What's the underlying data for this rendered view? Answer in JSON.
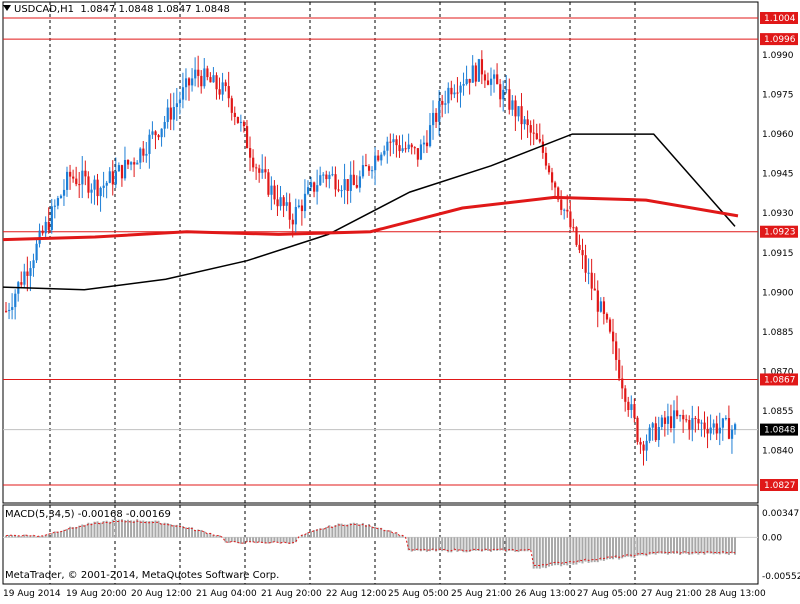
{
  "header": {
    "symbol": "USDCAD,H1",
    "ohlc": "1.0847 1.0848 1.0847 1.0848"
  },
  "macd_label": "MACD(5,34,5) -0.00168 -0.00169",
  "copyright": "MetaTrader, © 2001-2014, MetaQuotes Software Corp.",
  "colors": {
    "bull_candle": "#1e7fd6",
    "bear_candle": "#e01818",
    "ma_slow": "#e01818",
    "ma_fast": "#000000",
    "level_line": "#e01818",
    "grid": "#000000",
    "macd_hist": "#a8a8a8",
    "macd_signal": "#e01818"
  },
  "price_axis": {
    "labels": [
      "1.0990",
      "1.0975",
      "1.0960",
      "1.0945",
      "1.0930",
      "1.0915",
      "1.0900",
      "1.0885",
      "1.0870",
      "1.0855",
      "1.0840"
    ],
    "current_price": "1.0848"
  },
  "level_lines": [
    "1.1004",
    "1.0996",
    "1.0923",
    "1.0867",
    "1.0827"
  ],
  "macd_axis": [
    "0.00347",
    "0.00",
    "-0.00552"
  ],
  "time_axis": [
    "19 Aug 2014",
    "19 Aug 20:00",
    "20 Aug 12:00",
    "21 Aug 04:00",
    "21 Aug 20:00",
    "22 Aug 12:00",
    "25 Aug 05:00",
    "25 Aug 21:00",
    "26 Aug 13:00",
    "27 Aug 05:00",
    "27 Aug 21:00",
    "28 Aug 13:00"
  ],
  "chart_data": {
    "type": "candlestick",
    "symbol": "USDCAD",
    "timeframe": "H1",
    "ylim": [
      1.0827,
      1.1004
    ],
    "close_points": [
      [
        "19 Aug 2014",
        1.0893
      ],
      [
        "19 Aug 08:00",
        1.0918
      ],
      [
        "19 Aug 14:00",
        1.0944
      ],
      [
        "19 Aug 20:00",
        1.094
      ],
      [
        "20 Aug 04:00",
        1.095
      ],
      [
        "20 Aug 12:00",
        1.0965
      ],
      [
        "20 Aug 18:00",
        1.0983
      ],
      [
        "21 Aug 04:00",
        1.0975
      ],
      [
        "21 Aug 12:00",
        1.0945
      ],
      [
        "21 Aug 20:00",
        1.0928
      ],
      [
        "22 Aug 04:00",
        1.0945
      ],
      [
        "22 Aug 12:00",
        1.094
      ],
      [
        "22 Aug 18:00",
        1.0958
      ],
      [
        "25 Aug 05:00",
        1.0952
      ],
      [
        "25 Aug 13:00",
        1.0978
      ],
      [
        "25 Aug 21:00",
        1.0985
      ],
      [
        "26 Aug 05:00",
        1.097
      ],
      [
        "26 Aug 13:00",
        1.0952
      ],
      [
        "26 Aug 21:00",
        1.0918
      ],
      [
        "27 Aug 05:00",
        1.0885
      ],
      [
        "27 Aug 09:00",
        1.0843
      ],
      [
        "27 Aug 21:00",
        1.0852
      ],
      [
        "28 Aug 05:00",
        1.085
      ],
      [
        "28 Aug 13:00",
        1.0848
      ]
    ],
    "moving_averages": [
      {
        "color": "black",
        "values": [
          1.0902,
          1.0901,
          1.0905,
          1.0912,
          1.0922,
          1.0938,
          1.0948,
          1.096,
          1.096,
          1.0925
        ]
      },
      {
        "color": "red",
        "values": [
          1.092,
          1.0921,
          1.0923,
          1.0922,
          1.0923,
          1.0932,
          1.0936,
          1.0935,
          1.0929
        ]
      }
    ],
    "macd": {
      "params": "5,34,5",
      "main": -0.00168,
      "signal": -0.00169,
      "ylim": [
        -0.00552,
        0.00347
      ]
    }
  }
}
